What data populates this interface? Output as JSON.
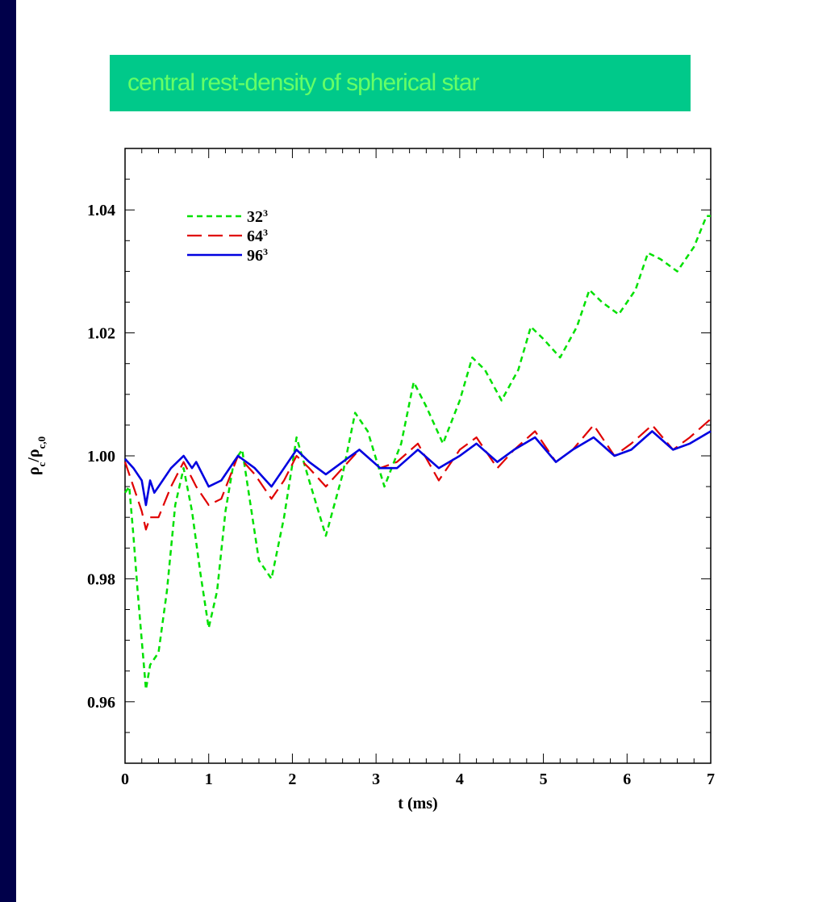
{
  "banner": {
    "title": "central rest-density of spherical star"
  },
  "chart_data": {
    "type": "line",
    "xlabel": "t (ms)",
    "ylabel": "ρ_c/ρ_c,0",
    "xlim": [
      0,
      7
    ],
    "ylim": [
      0.95,
      1.05
    ],
    "xticks": [
      0,
      1,
      2,
      3,
      4,
      5,
      6,
      7
    ],
    "yticks": [
      0.96,
      0.98,
      1.0,
      1.02,
      1.04
    ],
    "xtick_labels": [
      "0",
      "1",
      "2",
      "3",
      "4",
      "5",
      "6",
      "7"
    ],
    "ytick_labels": [
      "0.96",
      "0.98",
      "1.00",
      "1.02",
      "1.04"
    ],
    "legend_position": "top-left",
    "series": [
      {
        "name": "32",
        "sup": "3",
        "color": "#00e000",
        "dash": "short",
        "x": [
          0,
          0.05,
          0.1,
          0.15,
          0.2,
          0.25,
          0.3,
          0.35,
          0.4,
          0.5,
          0.6,
          0.7,
          0.8,
          0.9,
          1.0,
          1.1,
          1.2,
          1.3,
          1.4,
          1.5,
          1.6,
          1.75,
          1.9,
          2.05,
          2.2,
          2.4,
          2.6,
          2.75,
          2.9,
          3.1,
          3.3,
          3.45,
          3.6,
          3.8,
          4.0,
          4.15,
          4.3,
          4.5,
          4.7,
          4.85,
          5.0,
          5.2,
          5.4,
          5.55,
          5.7,
          5.9,
          6.1,
          6.25,
          6.4,
          6.6,
          6.8,
          6.95,
          7.0
        ],
        "y": [
          0.994,
          0.995,
          0.987,
          0.978,
          0.97,
          0.962,
          0.966,
          0.967,
          0.968,
          0.978,
          0.992,
          0.998,
          0.991,
          0.981,
          0.972,
          0.978,
          0.991,
          0.999,
          1.001,
          0.992,
          0.983,
          0.98,
          0.99,
          1.003,
          0.996,
          0.987,
          0.997,
          1.007,
          1.004,
          0.995,
          1.002,
          1.012,
          1.008,
          1.002,
          1.009,
          1.016,
          1.014,
          1.009,
          1.014,
          1.021,
          1.019,
          1.016,
          1.021,
          1.027,
          1.025,
          1.023,
          1.027,
          1.033,
          1.032,
          1.03,
          1.034,
          1.039,
          1.039
        ]
      },
      {
        "name": "64",
        "sup": "3",
        "color": "#e00000",
        "dash": "long",
        "x": [
          0,
          0.1,
          0.2,
          0.25,
          0.3,
          0.4,
          0.55,
          0.7,
          0.85,
          1.0,
          1.15,
          1.35,
          1.55,
          1.75,
          1.9,
          2.05,
          2.2,
          2.4,
          2.6,
          2.8,
          3.05,
          3.25,
          3.5,
          3.75,
          4.0,
          4.2,
          4.45,
          4.65,
          4.9,
          5.15,
          5.35,
          5.6,
          5.85,
          6.05,
          6.3,
          6.55,
          6.75,
          7.0
        ],
        "y": [
          0.999,
          0.995,
          0.991,
          0.988,
          0.99,
          0.99,
          0.995,
          0.999,
          0.995,
          0.992,
          0.993,
          1.0,
          0.997,
          0.993,
          0.996,
          1.0,
          0.998,
          0.995,
          0.998,
          1.001,
          0.998,
          0.999,
          1.002,
          0.996,
          1.001,
          1.003,
          0.998,
          1.001,
          1.004,
          0.999,
          1.001,
          1.005,
          1.0,
          1.002,
          1.005,
          1.001,
          1.003,
          1.006
        ]
      },
      {
        "name": "96",
        "sup": "3",
        "color": "#0000e0",
        "dash": "solid",
        "x": [
          0,
          0.1,
          0.2,
          0.25,
          0.3,
          0.35,
          0.4,
          0.55,
          0.7,
          0.8,
          0.85,
          1.0,
          1.15,
          1.35,
          1.55,
          1.75,
          1.9,
          2.05,
          2.2,
          2.4,
          2.6,
          2.8,
          3.05,
          3.25,
          3.5,
          3.75,
          4.0,
          4.2,
          4.45,
          4.65,
          4.9,
          5.15,
          5.35,
          5.6,
          5.85,
          6.05,
          6.3,
          6.55,
          6.75,
          7.0
        ],
        "y": [
          0.9995,
          0.998,
          0.996,
          0.992,
          0.996,
          0.994,
          0.995,
          0.998,
          1.0,
          0.998,
          0.999,
          0.995,
          0.996,
          1.0,
          0.998,
          0.995,
          0.998,
          1.001,
          0.999,
          0.997,
          0.999,
          1.001,
          0.998,
          0.998,
          1.001,
          0.998,
          1.0,
          1.002,
          0.999,
          1.001,
          1.003,
          0.999,
          1.001,
          1.003,
          1.0,
          1.001,
          1.004,
          1.001,
          1.002,
          1.004
        ]
      }
    ]
  }
}
